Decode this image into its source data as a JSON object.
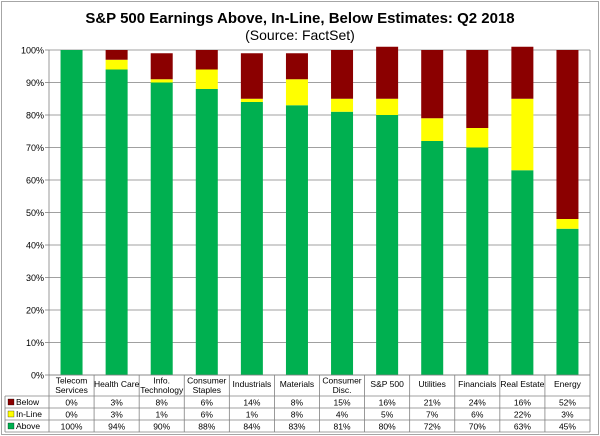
{
  "chart_data": {
    "type": "bar",
    "stacked": true,
    "title": "S&P 500 Earnings Above, In-Line, Below Estimates: Q2 2018",
    "subtitle": "(Source: FactSet)",
    "categories": [
      [
        "Telecom",
        "Services"
      ],
      [
        "Health Care"
      ],
      [
        "Info.",
        "Technology"
      ],
      [
        "Consumer",
        "Staples"
      ],
      [
        "Industrials"
      ],
      [
        "Materials"
      ],
      [
        "Consumer",
        "Disc."
      ],
      [
        "S&P 500"
      ],
      [
        "Utilities"
      ],
      [
        "Financials"
      ],
      [
        "Real Estate"
      ],
      [
        "Energy"
      ]
    ],
    "series": [
      {
        "name": "Below",
        "color": "#8b0000",
        "values": [
          0,
          3,
          8,
          6,
          14,
          8,
          15,
          16,
          21,
          24,
          16,
          52
        ],
        "labels": [
          "0%",
          "3%",
          "8%",
          "6%",
          "14%",
          "8%",
          "15%",
          "16%",
          "21%",
          "24%",
          "16%",
          "52%"
        ]
      },
      {
        "name": "In-Line",
        "color": "#ffff00",
        "values": [
          0,
          3,
          1,
          6,
          1,
          8,
          4,
          5,
          7,
          6,
          22,
          3
        ],
        "labels": [
          "0%",
          "3%",
          "1%",
          "6%",
          "1%",
          "8%",
          "4%",
          "5%",
          "7%",
          "6%",
          "22%",
          "3%"
        ]
      },
      {
        "name": "Above",
        "color": "#00b050",
        "values": [
          100,
          94,
          90,
          88,
          84,
          83,
          81,
          80,
          72,
          70,
          63,
          45
        ],
        "labels": [
          "100%",
          "94%",
          "90%",
          "88%",
          "84%",
          "83%",
          "81%",
          "80%",
          "72%",
          "70%",
          "63%",
          "45%"
        ]
      }
    ],
    "ylim": [
      0,
      100
    ],
    "yticks": [
      "0%",
      "10%",
      "20%",
      "30%",
      "40%",
      "50%",
      "60%",
      "70%",
      "80%",
      "90%",
      "100%"
    ],
    "grid": true,
    "legend": "data-table"
  }
}
